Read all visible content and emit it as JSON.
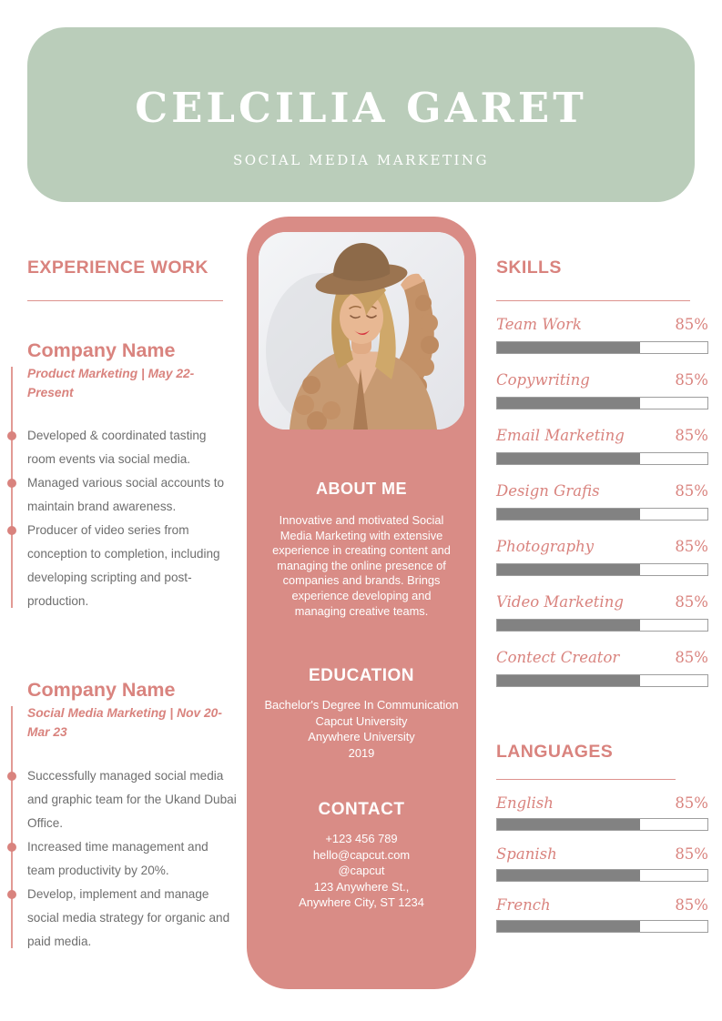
{
  "header": {
    "name": "CELCILIA GARET",
    "subtitle": "SOCIAL MEDIA MARKETING"
  },
  "experience": {
    "title": "EXPERIENCE WORK",
    "jobs": [
      {
        "company": "Company Name",
        "role_period": "Product Marketing | May 22-Present",
        "bullets": [
          "Developed & coordinated tasting room events via social media.",
          "Managed various social accounts to maintain brand awareness.",
          "Producer of video series from conception to completion, including developing scripting and post-production."
        ]
      },
      {
        "company": "Company Name",
        "role_period": "Social Media Marketing | Nov 20-Mar 23",
        "bullets": [
          "Successfully managed social media and graphic team for the Ukand Dubai Office.",
          "Increased time management and team productivity by 20%.",
          "Develop, implement and manage social media strategy for organic and paid media."
        ]
      }
    ]
  },
  "profile": {
    "photo_description": "woman wearing brown hat and knit cardigan",
    "about": {
      "title": "ABOUT ME",
      "text": "Innovative and motivated Social Media Marketing with extensive experience in creating content and managing the online presence of companies and brands. Brings experience developing and managing creative teams."
    },
    "education": {
      "title": "EDUCATION",
      "lines": [
        "Bachelor's Degree In Communication",
        "Capcut University",
        "Anywhere University",
        "2019"
      ]
    },
    "contact": {
      "title": "CONTACT",
      "lines": [
        "+123  456 789",
        "hello@capcut.com",
        "@capcut",
        "123 Anywhere St.,",
        "Anywhere City, ST 1234"
      ]
    }
  },
  "skills": {
    "title": "SKILLS",
    "items": [
      {
        "name": "Team Work",
        "value": "85%"
      },
      {
        "name": "Copywriting",
        "value": "85%"
      },
      {
        "name": "Email Marketing",
        "value": "85%"
      },
      {
        "name": "Design Grafis",
        "value": "85%"
      },
      {
        "name": "Photography",
        "value": "85%"
      },
      {
        "name": "Video Marketing",
        "value": "85%"
      },
      {
        "name": "Contect Creator",
        "value": "85%"
      }
    ]
  },
  "languages": {
    "title": "LANGUAGES",
    "items": [
      {
        "name": "English",
        "value": "85%"
      },
      {
        "name": "Spanish",
        "value": "85%"
      },
      {
        "name": "French",
        "value": "85%"
      }
    ]
  },
  "bars": {
    "fill": "68%"
  },
  "colors": {
    "header_green": "#bacdba",
    "panel_pink": "#d98c86",
    "accent_pink": "#d9837e",
    "bar_fill_gray": "#828282",
    "bar_border_gray": "#9e9e9e",
    "body_text_gray": "#6e6e6e"
  }
}
